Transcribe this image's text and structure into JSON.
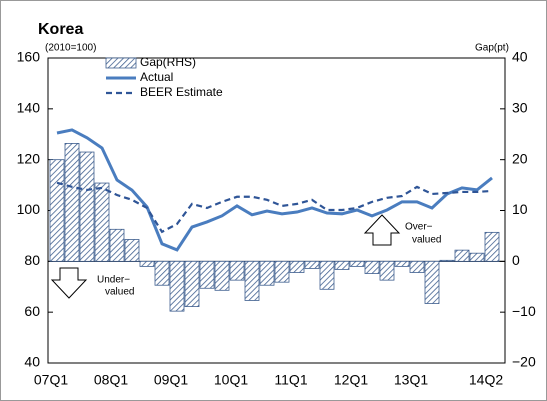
{
  "chart_data": {
    "type": "bar-line",
    "title": "Korea",
    "left_axis_label": "(2010=100)",
    "right_axis_label": "Gap(pt)",
    "under_label": [
      "Under−",
      "valued"
    ],
    "over_label": [
      "Over−",
      "valued"
    ],
    "categories": [
      "07Q1",
      null,
      null,
      null,
      "08Q1",
      null,
      null,
      null,
      "09Q1",
      null,
      null,
      null,
      "10Q1",
      null,
      null,
      null,
      "11Q1",
      null,
      null,
      null,
      "12Q1",
      null,
      null,
      null,
      "13Q1",
      null,
      null,
      null,
      null,
      "14Q2"
    ],
    "ylim": [
      40,
      160
    ],
    "yticks": [
      40,
      60,
      80,
      100,
      120,
      140,
      160
    ],
    "y2lim": [
      -20,
      40
    ],
    "y2ticks": [
      {
        "value": -20,
        "label": "−20"
      },
      {
        "value": -10,
        "label": "−10"
      },
      0,
      10,
      20,
      30,
      40
    ],
    "legend": "top-left",
    "series": [
      {
        "name": "Gap(RHS)",
        "type": "bar",
        "axis": "y2",
        "color": "#3f5f8f",
        "values": [
          20,
          23.2,
          21.5,
          15.4,
          6.3,
          4.3,
          -1,
          -4.7,
          -9.8,
          -8.9,
          -5.3,
          -5.7,
          -3.7,
          -7.7,
          -4.7,
          -4.1,
          -2.2,
          -1.4,
          -5.5,
          -1.6,
          -1,
          -2.4,
          -3.7,
          -1,
          -2.2,
          -8.3,
          0.2,
          2.2,
          1.6,
          5.7
        ]
      },
      {
        "name": "Actual",
        "type": "line",
        "color": "#4a7dbf",
        "values": [
          130.5,
          131.7,
          128.6,
          124.6,
          112,
          108,
          101.4,
          86.9,
          84.5,
          93.5,
          95.5,
          97.9,
          101.8,
          98.3,
          99.8,
          98.7,
          99.4,
          101,
          99,
          98.7,
          100.2,
          97.9,
          100.2,
          103.4,
          103.4,
          101,
          106.5,
          108.9,
          108.1,
          112.8
        ]
      },
      {
        "name": "BEER Estimate",
        "type": "line",
        "dashed": true,
        "color": "#2f5597",
        "values": [
          110.9,
          109.3,
          108.1,
          108.9,
          106.1,
          104.2,
          101,
          91.6,
          94.7,
          102.6,
          101,
          103.4,
          105.4,
          105.4,
          104.2,
          101.8,
          102.6,
          104.2,
          100.2,
          100.2,
          101,
          103.4,
          105,
          105.7,
          109.3,
          106.5,
          106.9,
          107.3,
          107.3,
          107.7
        ]
      }
    ]
  }
}
